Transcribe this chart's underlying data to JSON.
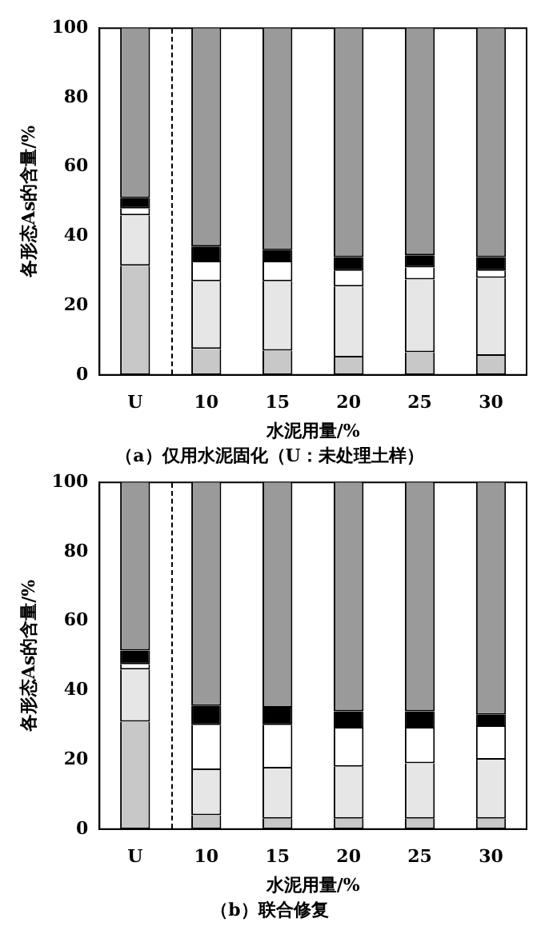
{
  "chart_data": [
    {
      "type": "bar",
      "stacked": true,
      "title": "（a）仅用水泥固化（U：未处理土样）",
      "xlabel": "水泥用量/%",
      "ylabel": "各形态As的含量/%",
      "categories": [
        "U",
        "10",
        "15",
        "20",
        "25",
        "30"
      ],
      "ylim": [
        0,
        100
      ],
      "yticks": [
        0,
        20,
        40,
        60,
        80,
        100
      ],
      "series": [
        {
          "color": "#c8c8c8",
          "values": [
            31.5,
            7.5,
            7,
            5,
            6.5,
            5.5
          ]
        },
        {
          "color": "#e6e6e6",
          "values": [
            14.5,
            19.5,
            20,
            20.5,
            21,
            22.5
          ]
        },
        {
          "color": "#ffffff",
          "values": [
            2,
            5.5,
            5.5,
            4.5,
            3.5,
            2
          ]
        },
        {
          "color": "#000000",
          "values": [
            3,
            4.5,
            3.5,
            4,
            3.5,
            4
          ]
        },
        {
          "color": "#9a9a9a",
          "values": [
            49,
            63,
            64,
            66,
            65.5,
            66
          ]
        }
      ]
    },
    {
      "type": "bar",
      "stacked": true,
      "title": "（b）联合修复",
      "xlabel": "水泥用量/%",
      "ylabel": "各形态As的含量/%",
      "categories": [
        "U",
        "10",
        "15",
        "20",
        "25",
        "30"
      ],
      "ylim": [
        0,
        100
      ],
      "yticks": [
        0,
        20,
        40,
        60,
        80,
        100
      ],
      "series": [
        {
          "color": "#c8c8c8",
          "values": [
            31,
            4,
            3,
            3,
            3,
            3
          ]
        },
        {
          "color": "#e6e6e6",
          "values": [
            15,
            13,
            14.5,
            15,
            16,
            17
          ]
        },
        {
          "color": "#ffffff",
          "values": [
            1.5,
            13,
            12.5,
            11,
            10,
            9.5
          ]
        },
        {
          "color": "#000000",
          "values": [
            4,
            5.5,
            5,
            5,
            5,
            3.5
          ]
        },
        {
          "color": "#9a9a9a",
          "values": [
            48.5,
            64.5,
            65,
            66,
            66,
            67
          ]
        }
      ]
    }
  ]
}
